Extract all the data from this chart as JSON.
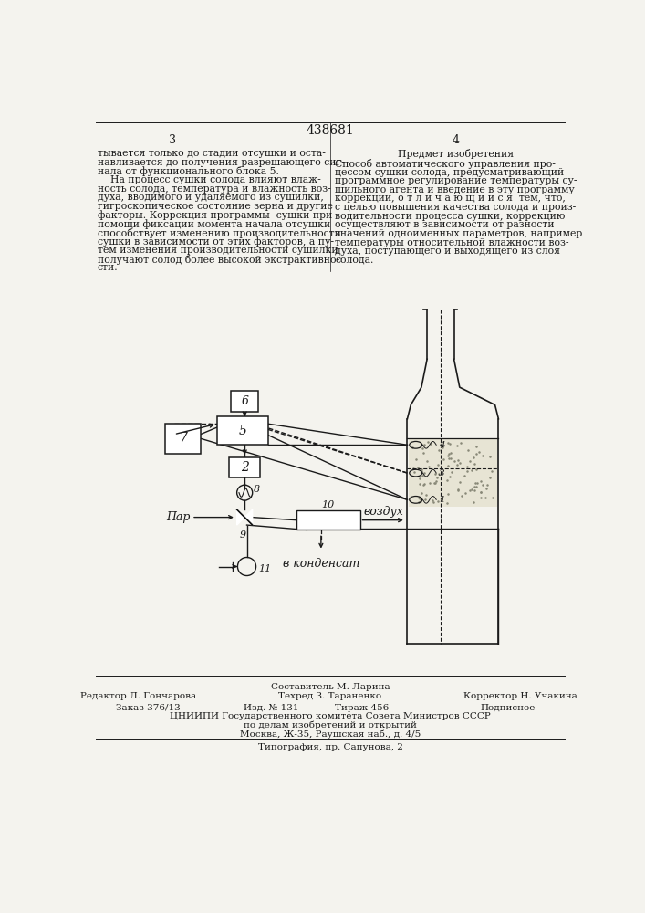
{
  "page_number": "438681",
  "col_left": "3",
  "col_right": "4",
  "bg_color": "#f4f3ee",
  "left_text_lines": [
    "тывается только до стадии отсушки и оста-",
    "навливается до получения разрешающего сиг-",
    "нала от функционального блока 5.",
    "    На процесс сушки солода влияют влаж-",
    "ность солода, температура и влажность воз-",
    "духа, вводимого и удаляемого из сушилки,",
    "гигроскопическое состояние зерна и другие",
    "факторы. Коррекция программы  сушки при",
    "помощи фиксации момента начала отсушки",
    "способствует изменению производительности",
    "сушки в зависимости от этих факторов, а пу-",
    "тем изменения производительности сушилки",
    "получают солод более высокой экстрактивно-",
    "сти."
  ],
  "right_title": "Предмет изобретения",
  "right_text_lines": [
    "Способ автоматического управления про-",
    "цессом сушки солода, предусматривающий",
    "программное регулирование температуры су-",
    "шильного агента и введение в эту программу",
    "коррекции, о т л и ч а ю щ и й с я  тем, что,",
    "с целью повышения качества солода и произ-",
    "водительности процесса сушки, коррекцию",
    "осуществляют в зависимости от разности",
    "значений одноименных параметров, например",
    "температуры относительной влажности воз-",
    "духа, поступающего и выходящего из слоя",
    "солода."
  ],
  "footer_composer": "Составитель М. Ларина",
  "footer_editor": "Редактор Л. Гончарова",
  "footer_tech": "Техред З. Тараненко",
  "footer_corrector": "Корректор Н. Учакина",
  "footer_order": "Заказ 376/13",
  "footer_pub": "Изд. № 131",
  "footer_print": "Тираж 456",
  "footer_sub": "Подписное",
  "footer_org": "ЦНИИПИ Государственного комитета Совета Министров СССР",
  "footer_org2": "по делам изобретений и открытий",
  "footer_org3": "Москва, Ж-35, Раушская наб., д. 4/5",
  "footer_typo": "Типография, пр. Сапунова, 2"
}
